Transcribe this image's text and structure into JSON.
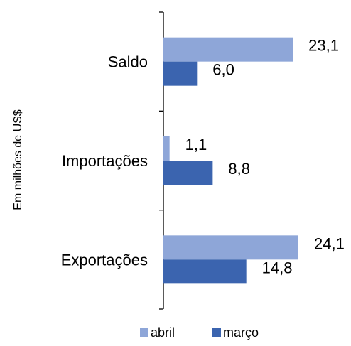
{
  "chart_data": {
    "type": "bar",
    "orientation": "horizontal",
    "ylabel": "Em milhões de US$",
    "categories": [
      "Saldo",
      "Importações",
      "Exportações"
    ],
    "series": [
      {
        "name": "abril",
        "color": "#8EA6D8",
        "values": [
          23.1,
          1.1,
          24.1
        ],
        "labels": [
          "23,1",
          "1,1",
          "24,1"
        ]
      },
      {
        "name": "março",
        "color": "#3B64AF",
        "values": [
          6.0,
          8.8,
          14.8
        ],
        "labels": [
          "6,0",
          "8,8",
          "14,8"
        ]
      }
    ],
    "xlim": [
      0,
      24.1
    ],
    "grid": false,
    "legend_position": "bottom"
  }
}
